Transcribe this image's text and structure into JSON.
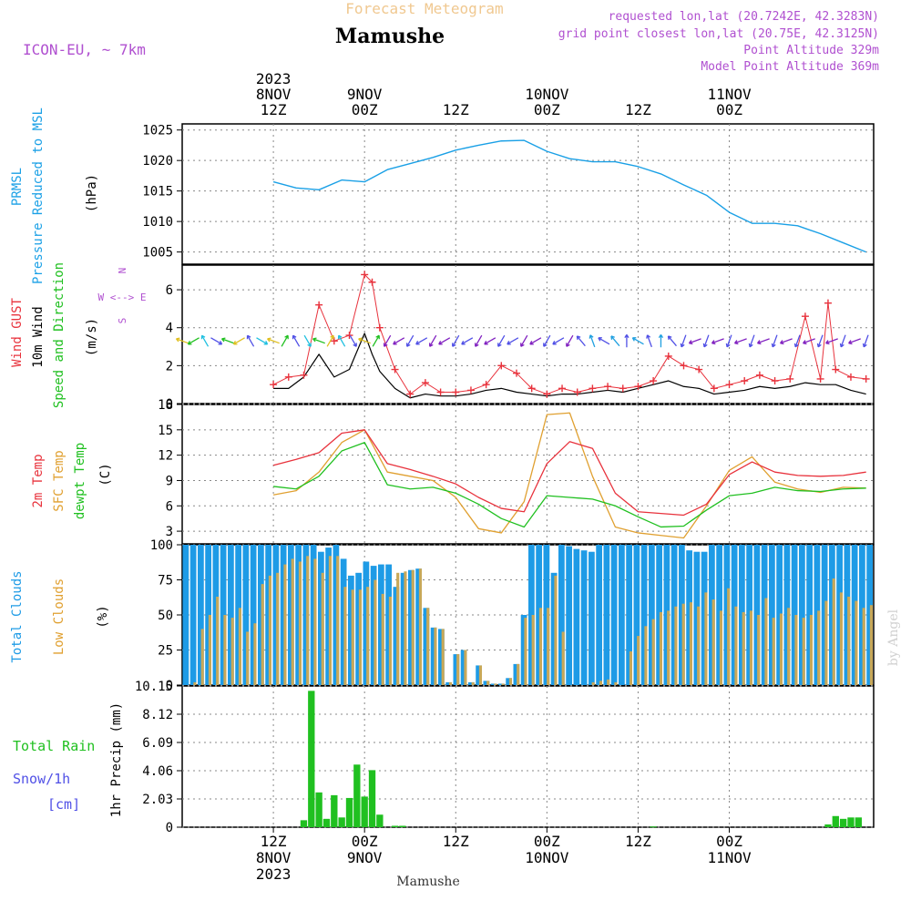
{
  "header": {
    "product": "Forecast Meteogram",
    "location": "Mamushe",
    "model": "ICON-EU, ~ 7km",
    "requested": "requested lon,lat (20.7242E, 42.3283N)",
    "gridpoint": "grid point closest lon,lat (20.75E, 42.3125N)",
    "point_alt": "Point Altitude 329m",
    "model_alt": "Model Point Altitude 369m",
    "credit": "by Angel",
    "footer_location": "Mamushe"
  },
  "time_axis": {
    "top_labels": [
      {
        "line1": "2023",
        "line2": "8NOV",
        "line3": "12Z"
      },
      {
        "line1": "",
        "line2": "9NOV",
        "line3": "00Z"
      },
      {
        "line1": "",
        "line2": "",
        "line3": "12Z"
      },
      {
        "line1": "",
        "line2": "10NOV",
        "line3": "00Z"
      },
      {
        "line1": "",
        "line2": "",
        "line3": "12Z"
      },
      {
        "line1": "",
        "line2": "11NOV",
        "line3": "00Z"
      }
    ],
    "bottom_labels": [
      {
        "line1": "12Z",
        "line2": "8NOV",
        "line3": "2023"
      },
      {
        "line1": "00Z",
        "line2": "9NOV",
        "line3": ""
      },
      {
        "line1": "12Z",
        "line2": "",
        "line3": ""
      },
      {
        "line1": "00Z",
        "line2": "10NOV",
        "line3": ""
      },
      {
        "line1": "12Z",
        "line2": "",
        "line3": ""
      },
      {
        "line1": "00Z",
        "line2": "11NOV",
        "line3": ""
      }
    ]
  },
  "colors": {
    "pressure": "#1aa0e6",
    "gust": "#e8323c",
    "wind": "#000000",
    "temp": "#e8323c",
    "sfc": "#e0a030",
    "dewpt": "#20c020",
    "total_clouds": "#1e9be6",
    "low_clouds": "#c8a858",
    "rain": "#20c020",
    "snow": "#5050e6",
    "header_purple": "#b050d0",
    "header_orange": "#f0c890",
    "grid": "#888888"
  },
  "chart_data": [
    {
      "type": "line",
      "panel": "pressure",
      "axis_title_lines": [
        "PRMSL",
        "Pressure Reduced to MSL"
      ],
      "unit": "(hPa)",
      "ylim": [
        1003,
        1026
      ],
      "yticks": [
        "1005",
        "1010",
        "1015",
        "1020",
        "1025"
      ],
      "x_hours": [
        0,
        3,
        6,
        9,
        12,
        15,
        18,
        21,
        24,
        27,
        30,
        33,
        36,
        39,
        42,
        45,
        48,
        51,
        54,
        57,
        60,
        63,
        66,
        69,
        72,
        75,
        78
      ],
      "series": [
        {
          "values": [
            1016.5,
            1015.5,
            1015.2,
            1016.8,
            1016.5,
            1018.5,
            1019.5,
            1020.5,
            1021.7,
            1022.5,
            1023.2,
            1023.3,
            1021.5,
            1020.3,
            1019.8,
            1019.8,
            1019.0,
            1017.8,
            1016.0,
            1014.3,
            1011.5,
            1009.7,
            1009.7,
            1009.3,
            1008.0,
            1006.5,
            1005.0
          ]
        }
      ]
    },
    {
      "type": "line",
      "panel": "wind",
      "axis_title_lines": [
        "Wind GUST",
        "10m Wind",
        "Speed and Direction"
      ],
      "unit": "(m/s)",
      "compass": [
        "N",
        "W <--> E",
        "S"
      ],
      "ylim": [
        0,
        7.3
      ],
      "yticks": [
        "0",
        "2",
        "4",
        "6"
      ],
      "x_hours": [
        0,
        2,
        4,
        6,
        8,
        10,
        12,
        13,
        14,
        16,
        18,
        20,
        22,
        24,
        26,
        28,
        30,
        32,
        34,
        36,
        38,
        40,
        42,
        44,
        46,
        48,
        50,
        52,
        54,
        56,
        58,
        60,
        62,
        64,
        66,
        68,
        70,
        72,
        73,
        74,
        76,
        78
      ],
      "series": [
        {
          "name": "Wind GUST",
          "values": [
            1.0,
            1.4,
            1.5,
            5.2,
            3.3,
            3.6,
            6.8,
            6.4,
            4.0,
            1.8,
            0.5,
            1.1,
            0.6,
            0.6,
            0.7,
            1.0,
            2.0,
            1.6,
            0.8,
            0.5,
            0.8,
            0.6,
            0.8,
            0.9,
            0.8,
            0.9,
            1.2,
            2.5,
            2.0,
            1.8,
            0.8,
            1.0,
            1.2,
            1.5,
            1.2,
            1.3,
            4.6,
            1.3,
            5.3,
            1.8,
            1.4,
            1.3
          ]
        },
        {
          "name": "10m Wind",
          "values": [
            0.8,
            0.8,
            1.4,
            2.6,
            1.4,
            1.8,
            3.7,
            2.6,
            1.7,
            0.8,
            0.3,
            0.5,
            0.4,
            0.4,
            0.5,
            0.7,
            0.8,
            0.6,
            0.5,
            0.4,
            0.5,
            0.5,
            0.6,
            0.7,
            0.6,
            0.8,
            1.0,
            1.2,
            0.9,
            0.8,
            0.5,
            0.6,
            0.7,
            0.9,
            0.8,
            0.9,
            1.1,
            1.0,
            1.0,
            1.0,
            0.7,
            0.5
          ]
        }
      ],
      "arrow_rows": [
        {
          "direction": "mixed"
        }
      ]
    },
    {
      "type": "line",
      "panel": "temperature",
      "axis_title_lines": [
        "2m Temp",
        "SFC Temp",
        "dewpt Temp"
      ],
      "unit": "(C)",
      "ylim": [
        1.5,
        18
      ],
      "yticks": [
        "3",
        "6",
        "9",
        "12",
        "15",
        "18"
      ],
      "x_hours": [
        0,
        3,
        6,
        9,
        12,
        15,
        18,
        21,
        24,
        27,
        30,
        33,
        36,
        39,
        42,
        45,
        48,
        51,
        54,
        57,
        60,
        63,
        66,
        69,
        72,
        75,
        78
      ],
      "series": [
        {
          "name": "2m Temp",
          "values": [
            10.8,
            11.5,
            12.3,
            14.6,
            15.0,
            11.0,
            10.3,
            9.5,
            8.6,
            7.0,
            5.7,
            5.3,
            11.0,
            13.6,
            12.8,
            7.5,
            5.3,
            5.1,
            4.9,
            6.2,
            9.7,
            11.2,
            10.0,
            9.6,
            9.5,
            9.6,
            10.0
          ]
        },
        {
          "name": "SFC Temp",
          "values": [
            7.3,
            7.8,
            10.0,
            13.5,
            15.0,
            10.0,
            9.5,
            9.0,
            7.0,
            3.3,
            2.8,
            6.5,
            16.8,
            17.0,
            9.5,
            3.5,
            2.8,
            2.5,
            2.2,
            6.0,
            10.2,
            11.8,
            8.8,
            8.0,
            7.6,
            8.2,
            8.1
          ]
        },
        {
          "name": "dewpt Temp",
          "values": [
            8.3,
            8.0,
            9.5,
            12.5,
            13.5,
            8.5,
            8.0,
            8.2,
            7.5,
            6.2,
            4.5,
            3.5,
            7.2,
            7.0,
            6.8,
            6.0,
            4.7,
            3.5,
            3.6,
            5.5,
            7.2,
            7.5,
            8.2,
            7.8,
            7.7,
            8.0,
            8.1
          ]
        }
      ]
    },
    {
      "type": "bar",
      "panel": "clouds",
      "axis_title_lines": [
        "Total Clouds",
        "Low Clouds"
      ],
      "unit": "(%)",
      "ylim": [
        0,
        100
      ],
      "yticks": [
        "0",
        "25",
        "50",
        "75",
        "100"
      ],
      "series": [
        {
          "name": "Total Clouds",
          "values": [
            100,
            100,
            100,
            100,
            100,
            100,
            100,
            100,
            100,
            100,
            100,
            100,
            100,
            100,
            100,
            100,
            100,
            100,
            95,
            98,
            100,
            90,
            78,
            80,
            88,
            85,
            86,
            86,
            70,
            80,
            82,
            83,
            55,
            41,
            40,
            2,
            22,
            25,
            2,
            14,
            3,
            1,
            1,
            5,
            15,
            50,
            100,
            100,
            100,
            80,
            100,
            99,
            97,
            96,
            95,
            100,
            100,
            100,
            100,
            100,
            100,
            100,
            100,
            100,
            100,
            100,
            100,
            96,
            95,
            95,
            100,
            100,
            100,
            100,
            100,
            100,
            100,
            100,
            100,
            100,
            100,
            100,
            100,
            100,
            100,
            100,
            100,
            100,
            100,
            100,
            100,
            100
          ]
        },
        {
          "name": "Low Clouds",
          "values": [
            0,
            2,
            40,
            50,
            63,
            50,
            48,
            55,
            38,
            44,
            72,
            78,
            80,
            86,
            90,
            88,
            92,
            90,
            80,
            92,
            92,
            70,
            68,
            68,
            70,
            75,
            65,
            63,
            80,
            81,
            82,
            83,
            55,
            41,
            40,
            2,
            22,
            25,
            2,
            14,
            3,
            1,
            1,
            5,
            15,
            48,
            50,
            55,
            55,
            78,
            38,
            0,
            0,
            0,
            2,
            3,
            4,
            2,
            0,
            24,
            35,
            42,
            47,
            52,
            53,
            56,
            58,
            59,
            56,
            66,
            61,
            53,
            69,
            56,
            52,
            53,
            50,
            62,
            48,
            51,
            55,
            50,
            48,
            50,
            53,
            60,
            76,
            66,
            63,
            60,
            55,
            57
          ]
        }
      ]
    },
    {
      "type": "bar",
      "panel": "precip",
      "axis_title_lines": [
        "1hr Precip (mm)"
      ],
      "legend": [
        "Total Rain",
        "Snow/1h",
        "[cm]"
      ],
      "ylim": [
        0,
        10.15
      ],
      "yticks": [
        "0",
        "2.03",
        "4.06",
        "6.09",
        "8.12",
        "10.15"
      ],
      "bars": [
        {
          "hour": 4,
          "value": 0.5
        },
        {
          "hour": 5,
          "value": 9.8
        },
        {
          "hour": 6,
          "value": 2.5
        },
        {
          "hour": 7,
          "value": 0.6
        },
        {
          "hour": 8,
          "value": 2.3
        },
        {
          "hour": 9,
          "value": 0.7
        },
        {
          "hour": 10,
          "value": 2.1
        },
        {
          "hour": 11,
          "value": 4.5
        },
        {
          "hour": 12,
          "value": 2.2
        },
        {
          "hour": 13,
          "value": 4.1
        },
        {
          "hour": 14,
          "value": 0.9
        },
        {
          "hour": 16,
          "value": 0.1
        },
        {
          "hour": 17,
          "value": 0.1
        },
        {
          "hour": 50,
          "value": 0.05
        },
        {
          "hour": 73,
          "value": 0.2
        },
        {
          "hour": 74,
          "value": 0.8
        },
        {
          "hour": 75,
          "value": 0.6
        },
        {
          "hour": 76,
          "value": 0.7
        },
        {
          "hour": 77,
          "value": 0.7
        }
      ]
    }
  ]
}
